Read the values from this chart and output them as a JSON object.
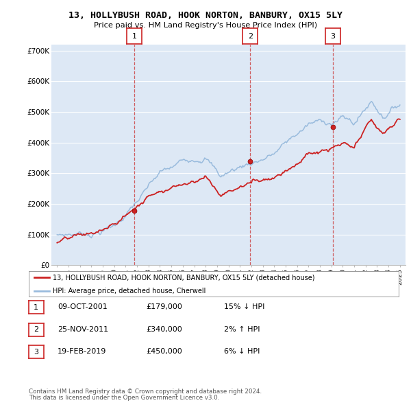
{
  "title": "13, HOLLYBUSH ROAD, HOOK NORTON, BANBURY, OX15 5LY",
  "subtitle": "Price paid vs. HM Land Registry's House Price Index (HPI)",
  "ylim": [
    0,
    720000
  ],
  "yticks": [
    0,
    100000,
    200000,
    300000,
    400000,
    500000,
    600000,
    700000
  ],
  "ytick_labels": [
    "£0",
    "£100K",
    "£200K",
    "£300K",
    "£400K",
    "£500K",
    "£600K",
    "£700K"
  ],
  "sale_year_floats": [
    2001.77,
    2011.9,
    2019.13
  ],
  "sale_prices": [
    179000,
    340000,
    450000
  ],
  "sale_labels": [
    "1",
    "2",
    "3"
  ],
  "legend_house": "13, HOLLYBUSH ROAD, HOOK NORTON, BANBURY, OX15 5LY (detached house)",
  "legend_hpi": "HPI: Average price, detached house, Cherwell",
  "table_rows": [
    {
      "num": "1",
      "date": "09-OCT-2001",
      "price": "£179,000",
      "hpi": "15% ↓ HPI"
    },
    {
      "num": "2",
      "date": "25-NOV-2011",
      "price": "£340,000",
      "hpi": "2% ↑ HPI"
    },
    {
      "num": "3",
      "date": "19-FEB-2019",
      "price": "£450,000",
      "hpi": "6% ↓ HPI"
    }
  ],
  "footnote1": "Contains HM Land Registry data © Crown copyright and database right 2024.",
  "footnote2": "This data is licensed under the Open Government Licence v3.0.",
  "house_line_color": "#cc2222",
  "hpi_line_color": "#99bbdd",
  "vline_color": "#cc4444",
  "plot_bg": "#dde8f5",
  "grid_color": "#ffffff"
}
